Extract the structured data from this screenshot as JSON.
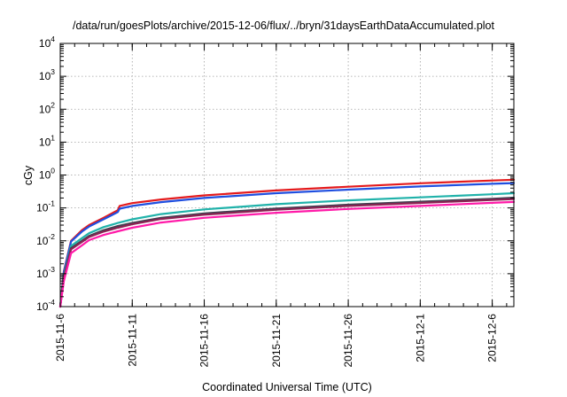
{
  "chart_data": {
    "type": "line",
    "title": "/data/run/goesPlots/archive/2015-12-06/flux/../bryn/31daysEarthDataAccumulated.plot",
    "xlabel": "Coordinated Universal Time (UTC)",
    "ylabel": "cGy",
    "yscale": "log",
    "xlim": [
      "2015-11-06",
      "2015-12-07 12:00"
    ],
    "ylim": [
      0.0001,
      10000
    ],
    "grid": true,
    "x_ticks": [
      "2015-11-6",
      "2015-11-11",
      "2015-11-16",
      "2015-11-21",
      "2015-11-26",
      "2015-12-1",
      "2015-12-6"
    ],
    "x_tick_dates": [
      "2015-11-06",
      "2015-11-11",
      "2015-11-16",
      "2015-11-21",
      "2015-11-26",
      "2015-12-01",
      "2015-12-06"
    ],
    "y_ticks": [
      {
        "base": "10",
        "exp": "-4",
        "value": 0.0001
      },
      {
        "base": "10",
        "exp": "-3",
        "value": 0.001
      },
      {
        "base": "10",
        "exp": "-2",
        "value": 0.01
      },
      {
        "base": "10",
        "exp": "-1",
        "value": 0.1
      },
      {
        "base": "10",
        "exp": "0",
        "value": 1
      },
      {
        "base": "10",
        "exp": "1",
        "value": 10
      },
      {
        "base": "10",
        "exp": "2",
        "value": 100
      },
      {
        "base": "10",
        "exp": "3",
        "value": 1000
      },
      {
        "base": "10",
        "exp": "4",
        "value": 10000
      }
    ],
    "series": [
      {
        "color": "#e41a1c",
        "x": [
          "2015-11-06 00:00",
          "2015-11-06 06:00",
          "2015-11-06 18:00",
          "2015-11-07 12:00",
          "2015-11-08 00:00",
          "2015-11-09 00:00",
          "2015-11-10 00:00",
          "2015-11-10 03:00",
          "2015-11-11 00:00",
          "2015-11-13 00:00",
          "2015-11-16 00:00",
          "2015-11-21 00:00",
          "2015-11-26 00:00",
          "2015-12-01 00:00",
          "2015-12-06 00:00",
          "2015-12-07 12:00"
        ],
        "y": [
          0.0001,
          0.0012,
          0.01,
          0.021,
          0.03,
          0.05,
          0.085,
          0.115,
          0.14,
          0.18,
          0.24,
          0.34,
          0.44,
          0.56,
          0.68,
          0.72
        ]
      },
      {
        "color": "#1f4fe0",
        "x": [
          "2015-11-06 00:00",
          "2015-11-06 06:00",
          "2015-11-06 18:00",
          "2015-11-07 12:00",
          "2015-11-08 00:00",
          "2015-11-09 00:00",
          "2015-11-10 00:00",
          "2015-11-10 03:00",
          "2015-11-11 00:00",
          "2015-11-13 00:00",
          "2015-11-16 00:00",
          "2015-11-21 00:00",
          "2015-11-26 00:00",
          "2015-12-01 00:00",
          "2015-12-06 00:00",
          "2015-12-07 12:00"
        ],
        "y": [
          0.0001,
          0.0011,
          0.0095,
          0.019,
          0.027,
          0.045,
          0.075,
          0.095,
          0.115,
          0.15,
          0.2,
          0.28,
          0.36,
          0.45,
          0.54,
          0.57
        ]
      },
      {
        "color": "#20b2aa",
        "x": [
          "2015-11-06 00:00",
          "2015-11-06 06:00",
          "2015-11-06 18:00",
          "2015-11-07 12:00",
          "2015-11-08 00:00",
          "2015-11-09 00:00",
          "2015-11-10 00:00",
          "2015-11-11 00:00",
          "2015-11-13 00:00",
          "2015-11-16 00:00",
          "2015-11-21 00:00",
          "2015-11-26 00:00",
          "2015-12-01 00:00",
          "2015-12-06 00:00",
          "2015-12-07 12:00"
        ],
        "y": [
          0.0001,
          0.0009,
          0.007,
          0.012,
          0.017,
          0.026,
          0.035,
          0.045,
          0.065,
          0.09,
          0.13,
          0.17,
          0.21,
          0.26,
          0.28
        ]
      },
      {
        "color": "#404050",
        "x": [
          "2015-11-06 00:00",
          "2015-11-06 06:00",
          "2015-11-06 18:00",
          "2015-11-07 12:00",
          "2015-11-08 00:00",
          "2015-11-09 00:00",
          "2015-11-10 00:00",
          "2015-11-11 00:00",
          "2015-11-13 00:00",
          "2015-11-16 00:00",
          "2015-11-21 00:00",
          "2015-11-26 00:00",
          "2015-12-01 00:00",
          "2015-12-06 00:00",
          "2015-12-07 12:00"
        ],
        "y": [
          0.0001,
          0.0008,
          0.006,
          0.01,
          0.014,
          0.021,
          0.028,
          0.035,
          0.05,
          0.068,
          0.096,
          0.125,
          0.155,
          0.19,
          0.205
        ]
      },
      {
        "color": "#8b2252",
        "x": [
          "2015-11-06 00:00",
          "2015-11-06 06:00",
          "2015-11-06 18:00",
          "2015-11-07 12:00",
          "2015-11-08 00:00",
          "2015-11-09 00:00",
          "2015-11-10 00:00",
          "2015-11-11 00:00",
          "2015-11-13 00:00",
          "2015-11-16 00:00",
          "2015-11-21 00:00",
          "2015-11-26 00:00",
          "2015-12-01 00:00",
          "2015-12-06 00:00",
          "2015-12-07 12:00"
        ],
        "y": [
          0.0001,
          0.00075,
          0.0055,
          0.0092,
          0.013,
          0.019,
          0.025,
          0.032,
          0.046,
          0.062,
          0.088,
          0.115,
          0.142,
          0.175,
          0.185
        ]
      },
      {
        "color": "#ff1aa8",
        "x": [
          "2015-11-06 00:00",
          "2015-11-06 06:00",
          "2015-11-06 18:00",
          "2015-11-07 12:00",
          "2015-11-08 00:00",
          "2015-11-09 00:00",
          "2015-11-10 00:00",
          "2015-11-11 00:00",
          "2015-11-13 00:00",
          "2015-11-16 00:00",
          "2015-11-21 00:00",
          "2015-11-26 00:00",
          "2015-12-01 00:00",
          "2015-12-06 00:00",
          "2015-12-07 12:00"
        ],
        "y": [
          0.0001,
          0.0006,
          0.0042,
          0.0072,
          0.0105,
          0.015,
          0.0195,
          0.025,
          0.036,
          0.05,
          0.071,
          0.093,
          0.115,
          0.143,
          0.152
        ]
      }
    ]
  }
}
